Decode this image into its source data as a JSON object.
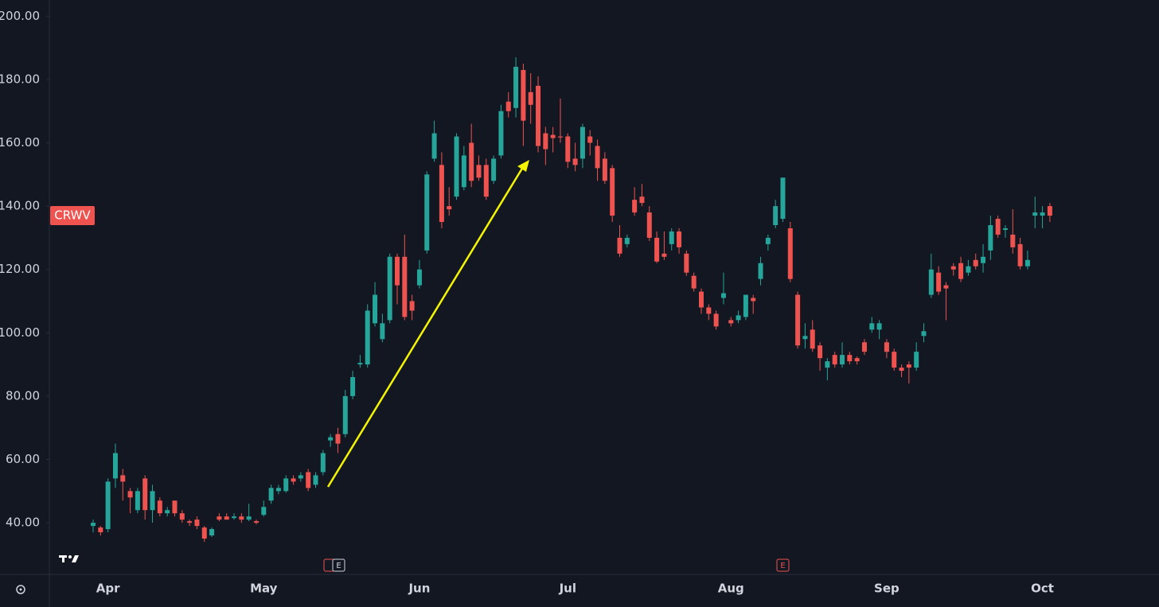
{
  "chart_data": {
    "type": "candlestick",
    "symbol": "CRWV",
    "up_color": "#26a69a",
    "down_color": "#ef5350",
    "grid": false,
    "ylim": [
      23.7,
      205.1
    ],
    "yticks": [
      {
        "value": 40,
        "label": "40.00"
      },
      {
        "value": 60,
        "label": "60.00"
      },
      {
        "value": 80,
        "label": "80.00"
      },
      {
        "value": 100,
        "label": "100.00"
      },
      {
        "value": 120,
        "label": "120.00"
      },
      {
        "value": 140,
        "label": "140.00"
      },
      {
        "value": 160,
        "label": "160.00"
      },
      {
        "value": 180,
        "label": "180.00"
      },
      {
        "value": 200,
        "label": "200.00"
      }
    ],
    "events": [
      "E",
      "E"
    ],
    "categories": [
      null,
      null,
      "Apr",
      null,
      null,
      null,
      null,
      null,
      null,
      null,
      null,
      null,
      null,
      null,
      null,
      null,
      null,
      null,
      null,
      null,
      null,
      null,
      null,
      "May",
      null,
      null,
      null,
      null,
      null,
      null,
      null,
      null,
      null,
      null,
      null,
      null,
      null,
      null,
      null,
      null,
      null,
      null,
      null,
      null,
      "Jun",
      null,
      null,
      null,
      null,
      null,
      null,
      null,
      null,
      null,
      null,
      null,
      null,
      null,
      null,
      null,
      null,
      null,
      null,
      null,
      "Jul",
      null,
      null,
      null,
      null,
      null,
      null,
      null,
      null,
      null,
      null,
      null,
      null,
      null,
      null,
      null,
      null,
      null,
      null,
      null,
      null,
      null,
      "Aug",
      null,
      null,
      null,
      null,
      null,
      null,
      null,
      null,
      null,
      null,
      null,
      null,
      null,
      null,
      null,
      null,
      null,
      null,
      null,
      null,
      "Sep",
      null,
      null,
      null,
      null,
      null,
      null,
      null,
      null,
      null,
      null,
      null,
      null,
      null,
      null,
      null,
      null,
      null,
      null,
      null,
      null,
      "Oct",
      null
    ],
    "open": [
      39,
      38.5,
      38,
      54,
      55,
      50,
      44,
      54,
      44,
      47,
      43,
      47,
      43,
      40.5,
      41,
      38.5,
      36,
      42,
      42,
      41.5,
      42,
      41,
      40.5,
      42.5,
      47,
      50,
      50,
      54,
      54,
      56,
      52,
      56,
      66,
      68,
      68,
      80,
      90,
      90,
      103,
      98,
      104,
      124,
      124,
      110,
      115,
      126,
      155,
      153,
      140,
      143,
      146,
      160,
      153,
      153,
      148,
      156,
      173,
      171,
      183,
      176,
      178,
      163,
      162.5,
      162,
      162,
      155,
      155,
      162,
      159,
      155,
      152,
      130,
      128,
      142,
      143,
      138,
      130,
      125,
      128,
      132,
      125,
      118,
      113,
      108,
      106,
      111,
      104,
      104,
      105,
      111,
      117,
      128,
      134,
      136,
      133,
      112,
      98,
      101,
      96,
      89,
      93,
      90,
      93,
      92,
      97,
      101,
      101,
      97,
      94,
      89,
      90,
      89,
      99,
      112,
      119,
      115,
      121,
      122,
      119,
      123,
      122,
      126,
      136,
      132.5,
      131,
      128,
      121,
      137,
      137,
      140
    ],
    "high": [
      41,
      39,
      54,
      65,
      57,
      51,
      51,
      55,
      52,
      48,
      45,
      47,
      44,
      41,
      42,
      39,
      38.5,
      43,
      43,
      43,
      43,
      46,
      41,
      47,
      52,
      52,
      55,
      55,
      56,
      57,
      56,
      63,
      68,
      70,
      82,
      88,
      93,
      109,
      116,
      106,
      125,
      125,
      131,
      112,
      123,
      151,
      167,
      157,
      146,
      163,
      159,
      166,
      156,
      155,
      156,
      172,
      176,
      187,
      185,
      182,
      181,
      165,
      165,
      174,
      163,
      160,
      166,
      164,
      161,
      157,
      153,
      134,
      131,
      146,
      147,
      140,
      132,
      132,
      133,
      133,
      126,
      119,
      114,
      109,
      107,
      119,
      105,
      107,
      112,
      112,
      124,
      131,
      142,
      149,
      135,
      113,
      103,
      104,
      97,
      92,
      94,
      97,
      94,
      92.5,
      98,
      105,
      104,
      98,
      95,
      90,
      91,
      97,
      103,
      125,
      121,
      116,
      122,
      124,
      123,
      125,
      128,
      137,
      137,
      134,
      139,
      130,
      126,
      143,
      140,
      141
    ],
    "low": [
      37,
      36,
      37,
      51,
      47,
      43,
      43,
      41,
      40,
      42,
      42,
      42,
      40,
      39,
      38,
      34,
      35.5,
      40.5,
      41,
      41,
      40,
      40.5,
      39.5,
      42,
      46,
      49,
      49.5,
      52,
      53,
      50,
      51,
      55,
      64,
      62,
      67,
      79,
      89,
      89,
      102,
      97,
      103,
      109,
      104,
      104,
      114,
      125,
      154,
      133,
      137,
      142,
      145,
      146,
      148,
      142,
      147,
      155,
      168,
      168,
      159,
      166,
      157,
      153,
      157,
      160,
      152,
      151,
      152,
      156,
      148,
      147,
      135,
      124,
      127,
      137,
      140,
      129,
      122,
      123,
      126,
      125,
      118,
      113,
      106,
      104,
      101,
      109,
      102,
      103,
      104,
      106,
      115,
      126,
      133,
      135,
      116,
      95,
      95,
      94,
      88,
      85,
      89,
      89,
      90,
      90,
      93,
      100,
      98,
      92,
      88,
      86,
      84,
      88,
      97,
      111,
      112,
      104,
      118,
      116,
      118,
      120,
      119,
      123,
      130,
      130,
      125,
      120,
      120,
      133,
      133,
      135
    ],
    "close": [
      40,
      37,
      53,
      62,
      53,
      48,
      50,
      44,
      50,
      43,
      44,
      43,
      41,
      40,
      39,
      35,
      38,
      41,
      41,
      42,
      41,
      42,
      40,
      45,
      51,
      51,
      54,
      53,
      55,
      51,
      55,
      62,
      67,
      65,
      80,
      86,
      90.5,
      107,
      112,
      103,
      124,
      115,
      105,
      107,
      120,
      150,
      163,
      135,
      139,
      162,
      156,
      148,
      149,
      143,
      155,
      170,
      170,
      184,
      167,
      172,
      159,
      158,
      161.5,
      161.7,
      154,
      153,
      165,
      160,
      152,
      148,
      137,
      125,
      130,
      138,
      141,
      130,
      122.5,
      124,
      132,
      127,
      119,
      114,
      108,
      106,
      102,
      112.5,
      103,
      105.5,
      112,
      110,
      122,
      130,
      140,
      149,
      117,
      96,
      99,
      95,
      92,
      91,
      90,
      93,
      91,
      91,
      94,
      103,
      103,
      94,
      89,
      88,
      89,
      94,
      100.5,
      120,
      113,
      114,
      120,
      117,
      121,
      121,
      124,
      134,
      131,
      133,
      127,
      121,
      123,
      138,
      138,
      137
    ]
  }
}
